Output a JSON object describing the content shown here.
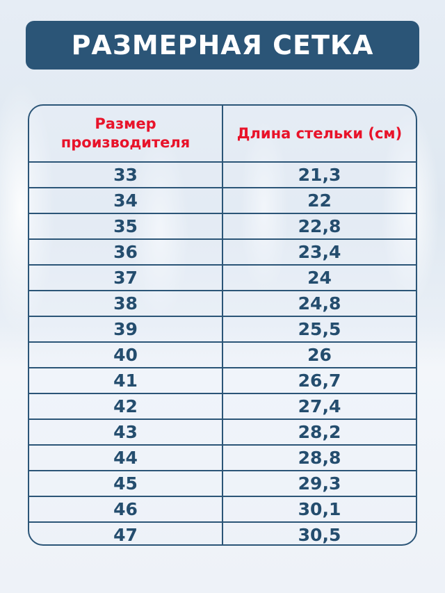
{
  "title": "РАЗМЕРНАЯ СЕТКА",
  "colors": {
    "title_bg": "#2b5577",
    "header_text": "#e8132a",
    "cell_text": "#244d6e"
  },
  "table": {
    "headers": [
      "Размер производителя",
      "Длина стельки (см)"
    ],
    "rows": [
      [
        "33",
        "21,3"
      ],
      [
        "34",
        "22"
      ],
      [
        "35",
        "22,8"
      ],
      [
        "36",
        "23,4"
      ],
      [
        "37",
        "24"
      ],
      [
        "38",
        "24,8"
      ],
      [
        "39",
        "25,5"
      ],
      [
        "40",
        "26"
      ],
      [
        "41",
        "26,7"
      ],
      [
        "42",
        "27,4"
      ],
      [
        "43",
        "28,2"
      ],
      [
        "44",
        "28,8"
      ],
      [
        "45",
        "29,3"
      ],
      [
        "46",
        "30,1"
      ],
      [
        "47",
        "30,5"
      ]
    ]
  }
}
